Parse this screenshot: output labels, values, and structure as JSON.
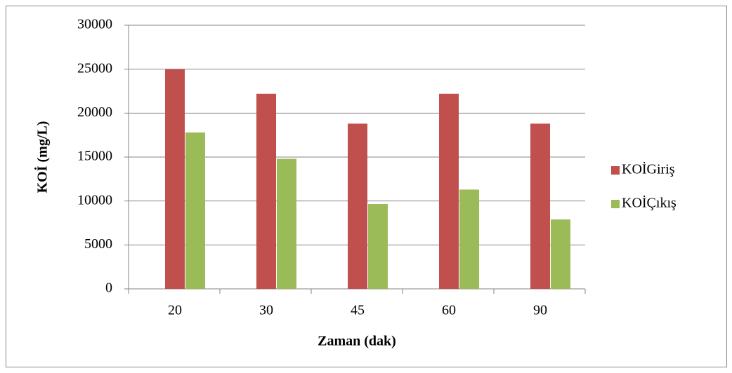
{
  "chart_data": {
    "type": "bar",
    "y_label": "KOİ (mg/L)",
    "x_label": "Zaman (dak)",
    "categories": [
      "20",
      "30",
      "45",
      "60",
      "90"
    ],
    "series": [
      {
        "name": "KOİGiriş",
        "color": "#c0504d",
        "values": [
          25000,
          22200,
          18800,
          22200,
          18800
        ]
      },
      {
        "name": "KOİÇıkış",
        "color": "#9bbb59",
        "values": [
          17800,
          14800,
          9650,
          11300,
          7900
        ]
      }
    ],
    "ylim": [
      0,
      30000
    ],
    "yticks": [
      0,
      5000,
      10000,
      15000,
      20000,
      25000,
      30000
    ],
    "grid": true,
    "legend": "right"
  }
}
